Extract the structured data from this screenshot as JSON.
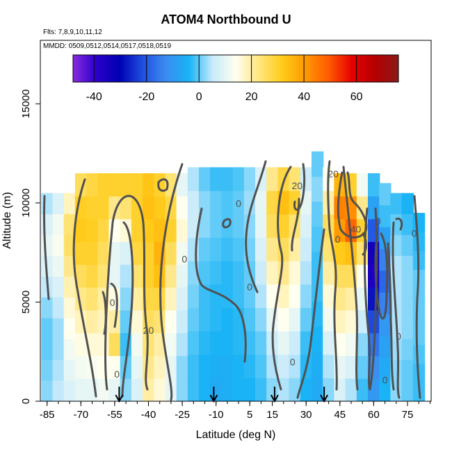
{
  "title": "ATOM4 Northbound U",
  "flights_note": "Flts: 7,8,9,10,11,12",
  "dates_note": "MMDD: 0509,0512,0514,0517,0518,0519",
  "chart_data": {
    "type": "heatmap",
    "title": "ATOM4 Northbound U",
    "xlabel": "Latitude (deg N)",
    "ylabel": "Altitude (m)",
    "xlim": [
      -85,
      85
    ],
    "ylim": [
      0,
      18000
    ],
    "x_ticks": [
      -85,
      -70,
      -55,
      -40,
      -25,
      -10,
      5,
      15,
      30,
      45,
      60,
      75
    ],
    "y_ticks": [
      0,
      5000,
      10000,
      15000
    ],
    "colorbar": {
      "min": -48,
      "max": 76,
      "ticks": [
        -40,
        -20,
        0,
        20,
        40,
        60
      ],
      "colors": [
        "#8a2be2",
        "#2b00c8",
        "#0000b4",
        "#1f4fe0",
        "#3c8cf0",
        "#19b4f5",
        "#c7eafb",
        "#fffff0",
        "#ffe680",
        "#ffcc1a",
        "#ff9900",
        "#ff5a00",
        "#e60000",
        "#b40000",
        "#8b1a1a"
      ]
    },
    "flight_markers_lat": [
      -53,
      -11,
      16,
      38
    ],
    "contour_levels": [
      0,
      20,
      40
    ],
    "contour_labels": [
      {
        "text": "0",
        "lat": -56,
        "alt": 4800
      },
      {
        "text": "20",
        "lat": -40,
        "alt": 3400
      },
      {
        "text": "0",
        "lat": -54,
        "alt": 1200
      },
      {
        "text": "0",
        "lat": -24,
        "alt": 7000
      },
      {
        "text": "0",
        "lat": 0,
        "alt": 9800
      },
      {
        "text": "0",
        "lat": 5,
        "alt": 5600
      },
      {
        "text": "20",
        "lat": 26,
        "alt": 10700
      },
      {
        "text": "0",
        "lat": 24,
        "alt": 1800
      },
      {
        "text": "20",
        "lat": 42,
        "alt": 11300
      },
      {
        "text": "0",
        "lat": 44,
        "alt": 8000
      },
      {
        "text": "40",
        "lat": 52,
        "alt": 8500
      },
      {
        "text": "0",
        "lat": 62,
        "alt": 8900
      },
      {
        "text": "0",
        "lat": 78,
        "alt": 8300
      },
      {
        "text": "0",
        "lat": 71,
        "alt": 3100
      },
      {
        "text": "0",
        "lat": 65,
        "alt": 900
      }
    ],
    "columns": [
      {
        "lat": -85,
        "alt_top": 10500,
        "u": [
          2,
          1,
          0,
          0,
          2,
          5,
          8,
          10,
          8,
          4
        ]
      },
      {
        "lat": -80,
        "alt_top": 10500,
        "u": [
          5,
          4,
          3,
          3,
          5,
          8,
          11,
          13,
          12,
          8
        ]
      },
      {
        "lat": -75,
        "alt_top": 10500,
        "u": [
          8,
          10,
          12,
          14,
          16,
          19,
          22,
          25,
          24,
          18
        ]
      },
      {
        "lat": -70,
        "alt_top": 11500,
        "u": [
          10,
          12,
          15,
          18,
          22,
          26,
          30,
          32,
          31,
          26
        ]
      },
      {
        "lat": -65,
        "alt_top": 11500,
        "u": [
          10,
          13,
          16,
          20,
          24,
          28,
          30,
          31,
          30,
          28
        ]
      },
      {
        "lat": -60,
        "alt_top": 11500,
        "u": [
          12,
          14,
          16,
          18,
          20,
          24,
          26,
          28,
          30,
          30
        ]
      },
      {
        "lat": -55,
        "alt_top": 11500,
        "u": [
          10,
          14,
          26,
          20,
          15,
          10,
          10,
          14,
          22,
          30
        ]
      },
      {
        "lat": -50,
        "alt_top": 11500,
        "u": [
          2,
          0,
          -2,
          0,
          2,
          4,
          8,
          16,
          24,
          30
        ]
      },
      {
        "lat": -45,
        "alt_top": 11500,
        "u": [
          8,
          10,
          12,
          16,
          20,
          24,
          28,
          30,
          30,
          30
        ]
      },
      {
        "lat": -40,
        "alt_top": 11500,
        "u": [
          20,
          22,
          24,
          26,
          28,
          30,
          30,
          32,
          34,
          33
        ]
      },
      {
        "lat": -35,
        "alt_top": 11500,
        "u": [
          16,
          18,
          20,
          24,
          28,
          34,
          36,
          34,
          32,
          30
        ]
      },
      {
        "lat": -30,
        "alt_top": 11500,
        "u": [
          10,
          10,
          12,
          14,
          18,
          22,
          26,
          30,
          28,
          24
        ]
      },
      {
        "lat": -25,
        "alt_top": 11500,
        "u": [
          2,
          2,
          4,
          6,
          8,
          10,
          12,
          16,
          14,
          10
        ]
      },
      {
        "lat": -20,
        "alt_top": 11800,
        "u": [
          -2,
          -2,
          -1,
          0,
          1,
          2,
          4,
          6,
          6,
          4
        ]
      },
      {
        "lat": -15,
        "alt_top": 11800,
        "u": [
          -4,
          -4,
          -3,
          -2,
          -2,
          -1,
          0,
          2,
          2,
          0
        ]
      },
      {
        "lat": -10,
        "alt_top": 11800,
        "u": [
          -6,
          -5,
          -4,
          -3,
          -3,
          -2,
          -1,
          0,
          0,
          -2
        ]
      },
      {
        "lat": -5,
        "alt_top": 11800,
        "u": [
          -5,
          -5,
          -4,
          -4,
          -3,
          -3,
          -2,
          -1,
          -1,
          -2
        ]
      },
      {
        "lat": 0,
        "alt_top": 11800,
        "u": [
          -4,
          -4,
          -3,
          -3,
          -2,
          -2,
          -1,
          0,
          0,
          -1
        ]
      },
      {
        "lat": 5,
        "alt_top": 11800,
        "u": [
          -4,
          -3,
          -2,
          -1,
          0,
          0,
          1,
          2,
          3,
          2
        ]
      },
      {
        "lat": 10,
        "alt_top": 11800,
        "u": [
          -2,
          -1,
          0,
          2,
          4,
          6,
          8,
          10,
          10,
          8
        ]
      },
      {
        "lat": 15,
        "alt_top": 11800,
        "u": [
          2,
          4,
          6,
          10,
          14,
          18,
          22,
          26,
          28,
          22
        ]
      },
      {
        "lat": 20,
        "alt_top": 11800,
        "u": [
          4,
          6,
          10,
          14,
          18,
          22,
          26,
          30,
          34,
          28
        ]
      },
      {
        "lat": 25,
        "alt_top": 11800,
        "u": [
          2,
          4,
          6,
          10,
          14,
          16,
          20,
          24,
          30,
          24
        ]
      },
      {
        "lat": 30,
        "alt_top": 11800,
        "u": [
          -4,
          -3,
          -2,
          0,
          2,
          4,
          6,
          8,
          10,
          6
        ]
      },
      {
        "lat": 35,
        "alt_top": 12600,
        "u": [
          -6,
          -5,
          -4,
          -3,
          -2,
          -2,
          -1,
          0,
          2,
          0
        ]
      },
      {
        "lat": 40,
        "alt_top": 11800,
        "u": [
          2,
          4,
          8,
          12,
          16,
          20,
          24,
          26,
          20,
          14
        ]
      },
      {
        "lat": 45,
        "alt_top": 11500,
        "u": [
          8,
          10,
          14,
          18,
          22,
          26,
          32,
          40,
          44,
          36
        ]
      },
      {
        "lat": 50,
        "alt_top": 11500,
        "u": [
          4,
          8,
          12,
          16,
          20,
          26,
          34,
          48,
          42,
          30
        ]
      },
      {
        "lat": 55,
        "alt_top": 11500,
        "u": [
          -2,
          0,
          2,
          6,
          10,
          14,
          24,
          30,
          22,
          12
        ]
      },
      {
        "lat": 60,
        "alt_top": 11500,
        "u": [
          -10,
          -12,
          -16,
          -22,
          -28,
          -36,
          -34,
          -20,
          -8,
          -2
        ]
      },
      {
        "lat": 65,
        "alt_top": 11000,
        "u": [
          -4,
          -6,
          -8,
          -10,
          -14,
          -18,
          -14,
          -8,
          -2,
          0
        ]
      },
      {
        "lat": 70,
        "alt_top": 10500,
        "u": [
          2,
          2,
          3,
          4,
          4,
          4,
          4,
          2,
          0,
          -2
        ]
      },
      {
        "lat": 75,
        "alt_top": 10500,
        "u": [
          0,
          0,
          1,
          2,
          2,
          2,
          2,
          0,
          -2,
          -4
        ]
      },
      {
        "lat": 80,
        "alt_top": 9500,
        "u": [
          -2,
          -2,
          -1,
          0,
          0,
          0,
          0,
          -2,
          -3,
          -4
        ]
      }
    ]
  }
}
